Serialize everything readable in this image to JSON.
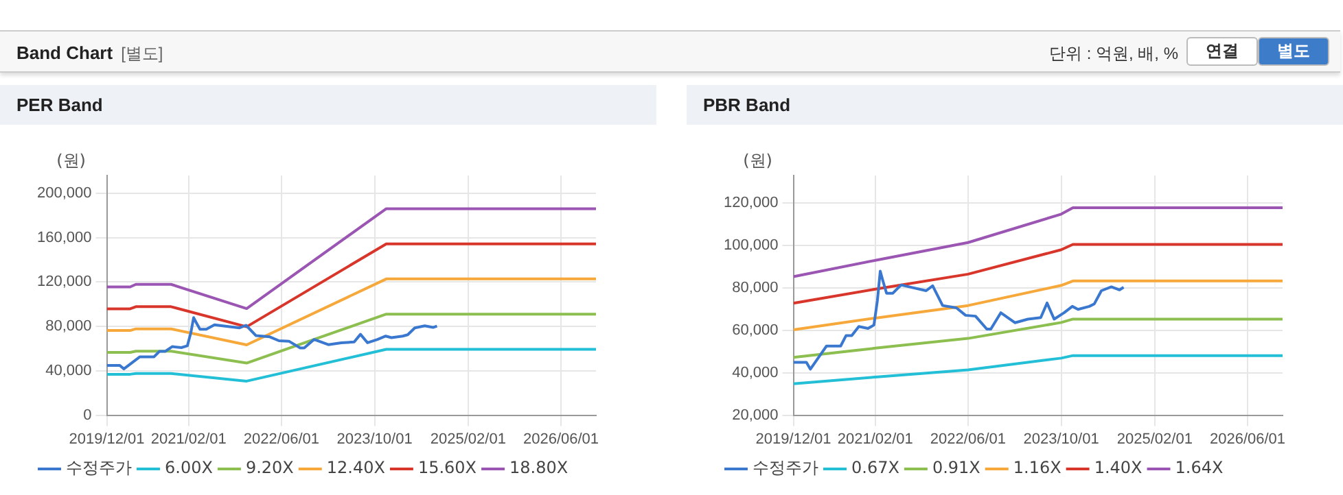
{
  "chart_data": [
    {
      "type": "other",
      "title": "Band Chart",
      "subtitle": "[별도]",
      "annotations": [
        "단위 : 억원, 배, %",
        "연결",
        "별도"
      ]
    },
    {
      "type": "line",
      "title": "PER Band",
      "ylabel": "(원)",
      "legend": "bottom",
      "grid": true,
      "marker": "none",
      "line_style": "solid",
      "xlim": [
        "2019-12-01",
        "2026-12-01"
      ],
      "xticks": [
        {
          "value": "2019-12-01",
          "label": "2019/12/01"
        },
        {
          "value": "2021-02-01",
          "label": "2021/02/01"
        },
        {
          "value": "2022-06-01",
          "label": "2022/06/01"
        },
        {
          "value": "2023-10-01",
          "label": "2023/10/01"
        },
        {
          "value": "2025-02-01",
          "label": "2025/02/01"
        },
        {
          "value": "2026-06-01",
          "label": "2026/06/01"
        }
      ],
      "ylim": [
        0,
        216000
      ],
      "yticks": [
        {
          "value": 0,
          "label": "0"
        },
        {
          "value": 40000,
          "label": "40,000"
        },
        {
          "value": 80000,
          "label": "80,000"
        },
        {
          "value": 120000,
          "label": "120,000"
        },
        {
          "value": 160000,
          "label": "160,000"
        },
        {
          "value": 200000,
          "label": "200,000"
        }
      ],
      "x": [
        "2019-12-01",
        "2020-04-01",
        "2020-05-01",
        "2020-11-01",
        "2021-12-01",
        "2023-12-01",
        "2026-12-01"
      ],
      "series": [
        {
          "name": "수정주가",
          "color": "#3a78d0",
          "x": [
            "2019-12-01",
            "2020-02-07",
            "2020-02-28",
            "2020-05-22",
            "2020-08-04",
            "2020-09-01",
            "2020-10-01",
            "2020-11-07",
            "2020-12-25",
            "2021-01-25",
            "2021-02-12",
            "2021-02-27",
            "2021-03-13",
            "2021-04-01",
            "2021-05-04",
            "2021-06-16",
            "2021-07-28",
            "2021-10-25",
            "2021-11-28",
            "2022-01-19",
            "2022-04-01",
            "2022-05-19",
            "2022-07-10",
            "2022-09-07",
            "2022-09-28",
            "2022-11-19",
            "2023-02-01",
            "2023-04-10",
            "2023-06-16",
            "2023-07-19",
            "2023-08-25",
            "2023-10-16",
            "2023-11-28",
            "2023-12-28",
            "2024-02-25",
            "2024-03-22",
            "2024-04-28",
            "2024-06-19",
            "2024-08-01",
            "2024-08-22"
          ],
          "values": [
            44900,
            44900,
            41700,
            52600,
            52600,
            57500,
            57500,
            61800,
            60900,
            62500,
            74000,
            87900,
            83300,
            77500,
            77500,
            81400,
            80500,
            78700,
            81000,
            71700,
            70600,
            67100,
            66700,
            60600,
            60600,
            68300,
            63600,
            65300,
            66000,
            72900,
            65300,
            68300,
            71300,
            69900,
            71300,
            72500,
            78700,
            80500,
            79100,
            80300
          ]
        },
        {
          "name": "6.00X",
          "color": "#22bfd6",
          "values": [
            36900,
            36900,
            37600,
            37600,
            30700,
            59400,
            59400
          ]
        },
        {
          "name": "9.20X",
          "color": "#8cbf4f",
          "values": [
            56600,
            56600,
            57700,
            57700,
            47000,
            91100,
            91100
          ]
        },
        {
          "name": "12.40X",
          "color": "#f6a83a",
          "values": [
            76300,
            76300,
            77800,
            77800,
            63400,
            122800,
            122800
          ]
        },
        {
          "name": "15.60X",
          "color": "#d9362b",
          "values": [
            95900,
            95900,
            97800,
            97800,
            79700,
            154400,
            154400
          ]
        },
        {
          "name": "18.80X",
          "color": "#9b55b2",
          "values": [
            115600,
            115600,
            117900,
            117900,
            96100,
            186100,
            186100
          ]
        }
      ]
    },
    {
      "type": "line",
      "title": "PBR Band",
      "ylabel": "(원)",
      "legend": "bottom",
      "grid": true,
      "marker": "none",
      "line_style": "solid",
      "xlim": [
        "2019-12-01",
        "2026-12-01"
      ],
      "xticks": [
        {
          "value": "2019-12-01",
          "label": "2019/12/01"
        },
        {
          "value": "2021-02-01",
          "label": "2021/02/01"
        },
        {
          "value": "2022-06-01",
          "label": "2022/06/01"
        },
        {
          "value": "2023-10-01",
          "label": "2023/10/01"
        },
        {
          "value": "2025-02-01",
          "label": "2025/02/01"
        },
        {
          "value": "2026-06-01",
          "label": "2026/06/01"
        }
      ],
      "ylim": [
        20000,
        133000
      ],
      "yticks": [
        {
          "value": 20000,
          "label": "20,000"
        },
        {
          "value": 40000,
          "label": "40,000"
        },
        {
          "value": 60000,
          "label": "60,000"
        },
        {
          "value": 80000,
          "label": "80,000"
        },
        {
          "value": 100000,
          "label": "100,000"
        },
        {
          "value": 120000,
          "label": "120,000"
        }
      ],
      "x": [
        "2019-12-01",
        "2021-02-01",
        "2022-06-01",
        "2023-10-01",
        "2023-12-01",
        "2026-12-01"
      ],
      "series": [
        {
          "name": "수정주가",
          "color": "#3a78d0",
          "x": [
            "2019-12-01",
            "2020-02-07",
            "2020-02-28",
            "2020-05-22",
            "2020-08-04",
            "2020-09-01",
            "2020-10-01",
            "2020-11-07",
            "2020-12-25",
            "2021-01-25",
            "2021-02-12",
            "2021-02-27",
            "2021-03-13",
            "2021-04-01",
            "2021-05-04",
            "2021-06-16",
            "2021-07-28",
            "2021-10-25",
            "2021-11-28",
            "2022-01-19",
            "2022-04-01",
            "2022-05-19",
            "2022-07-10",
            "2022-09-07",
            "2022-09-28",
            "2022-11-19",
            "2023-02-01",
            "2023-04-10",
            "2023-06-16",
            "2023-07-19",
            "2023-08-25",
            "2023-10-16",
            "2023-11-28",
            "2023-12-28",
            "2024-02-25",
            "2024-03-22",
            "2024-04-28",
            "2024-06-19",
            "2024-08-01",
            "2024-08-22"
          ],
          "values": [
            44900,
            44900,
            41700,
            52600,
            52600,
            57500,
            57500,
            61800,
            60900,
            62500,
            74000,
            87900,
            83300,
            77500,
            77500,
            81400,
            80500,
            78700,
            81000,
            71700,
            70600,
            67100,
            66700,
            60600,
            60600,
            68300,
            63600,
            65300,
            66000,
            72900,
            65300,
            68300,
            71300,
            69900,
            71300,
            72500,
            78700,
            80500,
            79100,
            80300
          ]
        },
        {
          "name": "0.67X",
          "color": "#22bfd6",
          "values": [
            34800,
            38000,
            41400,
            46900,
            48100,
            48100
          ]
        },
        {
          "name": "0.91X",
          "color": "#8cbf4f",
          "values": [
            47300,
            51600,
            56200,
            63700,
            65300,
            65300
          ]
        },
        {
          "name": "1.16X",
          "color": "#f6a83a",
          "values": [
            60300,
            65800,
            71700,
            81200,
            83300,
            83300
          ]
        },
        {
          "name": "1.40X",
          "color": "#d9362b",
          "values": [
            72800,
            79400,
            86500,
            98000,
            100500,
            100500
          ]
        },
        {
          "name": "1.64X",
          "color": "#9b55b2",
          "values": [
            85300,
            93000,
            101400,
            114800,
            117800,
            117800
          ]
        }
      ]
    }
  ]
}
